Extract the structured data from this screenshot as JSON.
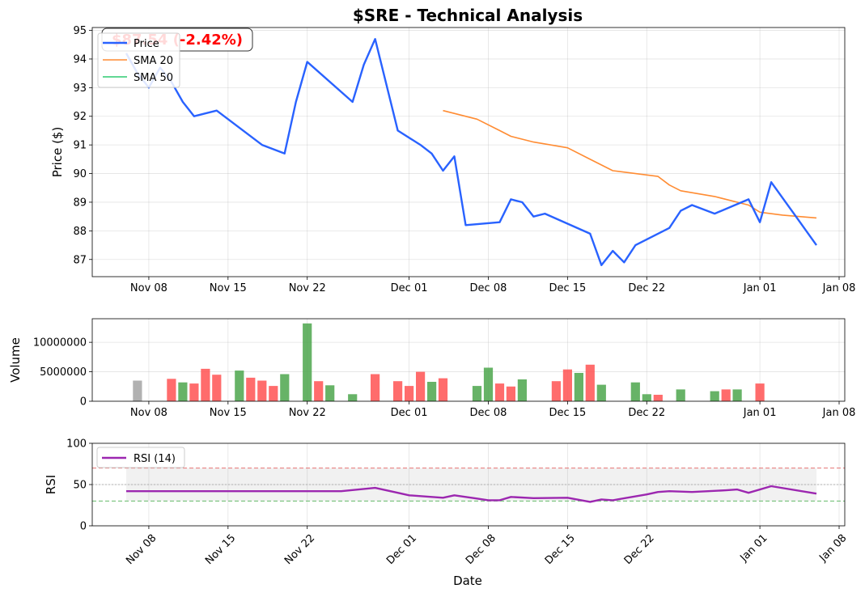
{
  "title": "$SRE - Technical Analysis",
  "badge": "$87.54 (-2.42%)",
  "colors": {
    "price": "#2962FF",
    "sma20": "#FF8C33",
    "sma50": "#2ECC71",
    "vol_up": "#4CA64C",
    "vol_down": "#FF5252",
    "vol_neutral": "#A9A9A9",
    "rsi": "#9C27B0",
    "overbought": "#E57373",
    "oversold": "#66BB6A",
    "badge_text": "#FF0000"
  },
  "chart_data": [
    {
      "type": "line",
      "name": "price-panel",
      "ylabel": "Price ($)",
      "ylim": [
        86.4,
        95.1
      ],
      "yticks": [
        87,
        88,
        89,
        90,
        91,
        92,
        93,
        94,
        95
      ],
      "grid": true,
      "legend_position": "top-left",
      "series": [
        {
          "name": "Price",
          "x": [
            "2024-11-06",
            "2024-11-07",
            "2024-11-08",
            "2024-11-09",
            "2024-11-10",
            "2024-11-11",
            "2024-11-12",
            "2024-11-14",
            "2024-11-18",
            "2024-11-20",
            "2024-11-21",
            "2024-11-22",
            "2024-11-26",
            "2024-11-27",
            "2024-11-28",
            "2024-11-30",
            "2024-12-02",
            "2024-12-03",
            "2024-12-04",
            "2024-12-05",
            "2024-12-06",
            "2024-12-09",
            "2024-12-10",
            "2024-12-11",
            "2024-12-12",
            "2024-12-13",
            "2024-12-17",
            "2024-12-18",
            "2024-12-19",
            "2024-12-20",
            "2024-12-21",
            "2024-12-24",
            "2024-12-25",
            "2024-12-26",
            "2024-12-28",
            "2024-12-31",
            "2025-01-01",
            "2025-01-02",
            "2025-01-04",
            "2025-01-06"
          ],
          "values": [
            94.2,
            93.5,
            93.0,
            93.7,
            93.2,
            92.5,
            92.0,
            92.2,
            91.0,
            90.7,
            92.5,
            93.9,
            92.5,
            93.8,
            94.7,
            91.5,
            91.0,
            90.7,
            90.1,
            90.6,
            88.2,
            88.3,
            89.1,
            89.0,
            88.5,
            88.6,
            87.9,
            86.8,
            87.3,
            86.9,
            87.5,
            88.1,
            88.7,
            88.9,
            88.6,
            89.1,
            88.3,
            89.7,
            88.6,
            87.5
          ]
        },
        {
          "name": "SMA 20",
          "x": [
            "2024-12-04",
            "2024-12-07",
            "2024-12-09",
            "2024-12-10",
            "2024-12-12",
            "2024-12-15",
            "2024-12-17",
            "2024-12-19",
            "2024-12-23",
            "2024-12-24",
            "2024-12-25",
            "2024-12-28",
            "2024-12-31",
            "2025-01-01",
            "2025-01-03",
            "2025-01-06"
          ],
          "values": [
            92.2,
            91.9,
            91.5,
            91.3,
            91.1,
            90.9,
            90.5,
            90.1,
            89.9,
            89.6,
            89.4,
            89.2,
            88.9,
            88.65,
            88.55,
            88.45
          ]
        },
        {
          "name": "SMA 50",
          "x": [],
          "values": []
        }
      ],
      "x_ticks": [
        "Nov 08",
        "Nov 15",
        "Nov 22",
        "Dec 01",
        "Dec 08",
        "Dec 15",
        "Dec 22",
        "Jan 01",
        "Jan 08"
      ]
    },
    {
      "type": "bar",
      "name": "volume-panel",
      "ylabel": "Volume",
      "ylim": [
        0,
        14000000
      ],
      "yticks": [
        0,
        5000000,
        10000000
      ],
      "ytick_labels": [
        "0",
        "5000000",
        "10000000"
      ],
      "grid": true,
      "x": [
        "2024-11-07",
        "2024-11-10",
        "2024-11-11",
        "2024-11-12",
        "2024-11-13",
        "2024-11-14",
        "2024-11-16",
        "2024-11-17",
        "2024-11-18",
        "2024-11-19",
        "2024-11-20",
        "2024-11-22",
        "2024-11-23",
        "2024-11-24",
        "2024-11-26",
        "2024-11-28",
        "2024-11-30",
        "2024-12-01",
        "2024-12-02",
        "2024-12-03",
        "2024-12-04",
        "2024-12-07",
        "2024-12-08",
        "2024-12-09",
        "2024-12-10",
        "2024-12-11",
        "2024-12-14",
        "2024-12-15",
        "2024-12-16",
        "2024-12-17",
        "2024-12-18",
        "2024-12-21",
        "2024-12-22",
        "2024-12-23",
        "2024-12-25",
        "2024-12-28",
        "2024-12-29",
        "2024-12-30",
        "2025-01-01",
        "2025-01-04"
      ],
      "values": [
        3500000,
        3800000,
        3200000,
        3000000,
        5500000,
        4500000,
        5200000,
        4000000,
        3500000,
        2600000,
        4600000,
        13200000,
        3400000,
        2700000,
        1200000,
        4600000,
        3400000,
        2600000,
        5000000,
        3300000,
        3900000,
        2600000,
        5700000,
        3000000,
        2500000,
        3700000,
        3400000,
        5400000,
        4800000,
        6200000,
        2800000,
        3200000,
        1200000,
        1100000,
        2000000,
        1700000,
        2000000,
        2000000,
        3000000,
        0
      ],
      "bar_direction": [
        "neutral",
        "down",
        "up",
        "down",
        "down",
        "down",
        "up",
        "down",
        "down",
        "down",
        "up",
        "up",
        "down",
        "up",
        "up",
        "down",
        "down",
        "down",
        "down",
        "up",
        "down",
        "up",
        "up",
        "down",
        "down",
        "up",
        "down",
        "down",
        "up",
        "down",
        "up",
        "up",
        "up",
        "down",
        "up",
        "up",
        "down",
        "up",
        "down",
        "none"
      ]
    },
    {
      "type": "line",
      "name": "rsi-panel",
      "ylabel": "RSI",
      "xlabel": "Date",
      "ylim": [
        0,
        100
      ],
      "yticks": [
        0,
        50,
        100
      ],
      "grid": true,
      "legend_position": "top-left",
      "overbought": 70,
      "oversold": 30,
      "series": [
        {
          "name": "RSI (14)",
          "x": [
            "2024-11-06",
            "2024-11-15",
            "2024-11-25",
            "2024-11-28",
            "2024-11-30",
            "2024-12-01",
            "2024-12-03",
            "2024-12-04",
            "2024-12-05",
            "2024-12-07",
            "2024-12-08",
            "2024-12-09",
            "2024-12-10",
            "2024-12-12",
            "2024-12-15",
            "2024-12-17",
            "2024-12-18",
            "2024-12-19",
            "2024-12-22",
            "2024-12-23",
            "2024-12-24",
            "2024-12-26",
            "2024-12-29",
            "2024-12-30",
            "2024-12-31",
            "2025-01-02",
            "2025-01-06"
          ],
          "values": [
            42,
            42,
            42,
            46,
            40,
            37,
            35,
            34,
            37,
            33,
            31,
            31,
            35,
            33.5,
            34,
            29,
            32,
            31,
            38,
            41,
            42,
            41,
            43,
            44,
            40,
            48,
            39
          ]
        }
      ],
      "x_ticks": [
        "Nov 08",
        "Nov 15",
        "Nov 22",
        "Dec 01",
        "Dec 08",
        "Dec 15",
        "Dec 22",
        "Jan 01",
        "Jan 08"
      ]
    }
  ]
}
